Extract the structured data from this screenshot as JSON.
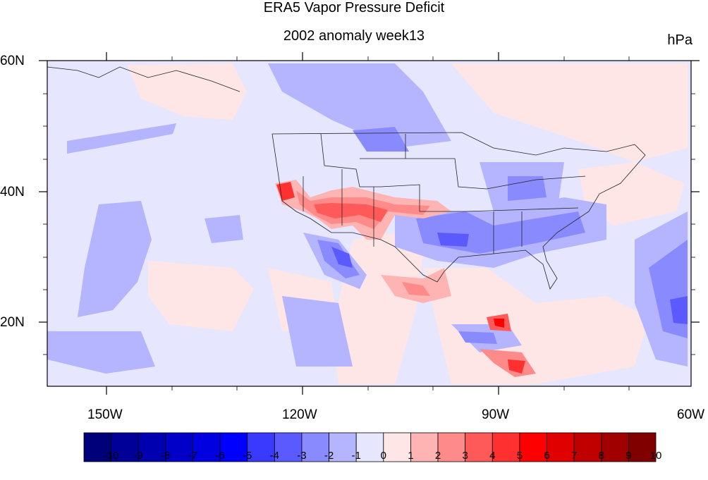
{
  "map": {
    "title": "ERA5 Vapor Pressure Deficit",
    "subtitle": "2002 anomaly week13",
    "units": "hPa",
    "lat_labels": [
      "60N",
      "40N",
      "20N"
    ],
    "lon_labels": [
      "150W",
      "120W",
      "90W",
      "60W"
    ],
    "colorbar": {
      "labels": [
        "-10",
        "-9",
        "-8",
        "-7",
        "-6",
        "-5",
        "-4",
        "-3",
        "-2",
        "-1",
        "0",
        "1",
        "2",
        "3",
        "4",
        "5",
        "6",
        "7",
        "8",
        "9",
        "10"
      ],
      "colors": [
        "#00007a",
        "#000099",
        "#0000b0",
        "#0000c8",
        "#0000e0",
        "#0000ff",
        "#3a3aff",
        "#5a5aff",
        "#8a8aff",
        "#b4b4ff",
        "#e6e6ff",
        "#ffe6e6",
        "#ffb4b4",
        "#ff8a8a",
        "#ff5a5a",
        "#ff3030",
        "#ff0000",
        "#e00000",
        "#c00000",
        "#a00000",
        "#800000"
      ]
    }
  }
}
